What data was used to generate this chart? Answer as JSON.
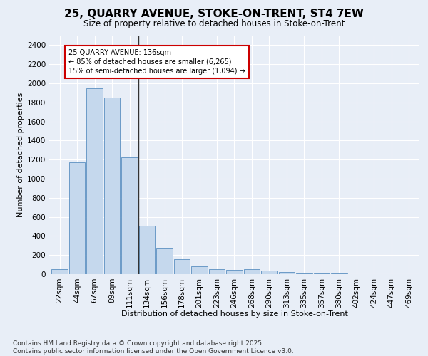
{
  "title1": "25, QUARRY AVENUE, STOKE-ON-TRENT, ST4 7EW",
  "title2": "Size of property relative to detached houses in Stoke-on-Trent",
  "xlabel": "Distribution of detached houses by size in Stoke-on-Trent",
  "ylabel": "Number of detached properties",
  "categories": [
    "22sqm",
    "44sqm",
    "67sqm",
    "89sqm",
    "111sqm",
    "134sqm",
    "156sqm",
    "178sqm",
    "201sqm",
    "223sqm",
    "246sqm",
    "268sqm",
    "290sqm",
    "313sqm",
    "335sqm",
    "357sqm",
    "380sqm",
    "402sqm",
    "424sqm",
    "447sqm",
    "469sqm"
  ],
  "values": [
    50,
    1175,
    1950,
    1850,
    1225,
    510,
    265,
    160,
    80,
    55,
    45,
    55,
    35,
    20,
    10,
    5,
    5,
    2,
    2,
    1,
    1
  ],
  "bar_color": "#c5d8ed",
  "bar_edge_color": "#5a8fc0",
  "vline_color": "#333333",
  "annotation_text": "25 QUARRY AVENUE: 136sqm\n← 85% of detached houses are smaller (6,265)\n15% of semi-detached houses are larger (1,094) →",
  "annotation_box_color": "#ffffff",
  "annotation_box_edge": "#cc0000",
  "ylim": [
    0,
    2500
  ],
  "yticks": [
    0,
    200,
    400,
    600,
    800,
    1000,
    1200,
    1400,
    1600,
    1800,
    2000,
    2200,
    2400
  ],
  "bg_color": "#e8eef7",
  "footer1": "Contains HM Land Registry data © Crown copyright and database right 2025.",
  "footer2": "Contains public sector information licensed under the Open Government Licence v3.0.",
  "title1_fontsize": 11,
  "title2_fontsize": 8.5,
  "xlabel_fontsize": 8,
  "ylabel_fontsize": 8,
  "tick_fontsize": 7.5,
  "footer_fontsize": 6.5,
  "annot_fontsize": 7
}
